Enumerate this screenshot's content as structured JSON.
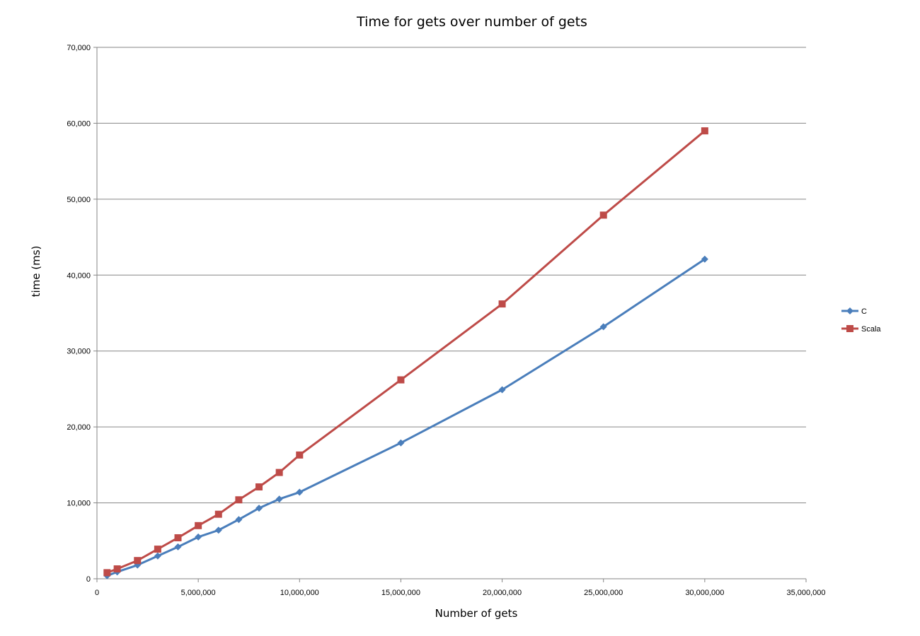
{
  "chart_data": {
    "type": "line",
    "title": "Time for gets over number of gets",
    "xlabel": "Number of gets",
    "ylabel": "time (ms)",
    "xlim": [
      0,
      35000000
    ],
    "ylim": [
      0,
      70000
    ],
    "x_ticks": [
      0,
      5000000,
      10000000,
      15000000,
      20000000,
      25000000,
      30000000,
      35000000
    ],
    "x_tick_labels": [
      "0",
      "5,000,000",
      "10,000,000",
      "15,000,000",
      "20,000,000",
      "25,000,000",
      "30,000,000",
      "35,000,000"
    ],
    "y_ticks": [
      0,
      10000,
      20000,
      30000,
      40000,
      50000,
      60000,
      70000
    ],
    "y_tick_labels": [
      "0",
      "10,000",
      "20,000",
      "30,000",
      "40,000",
      "50,000",
      "60,000",
      "70,000"
    ],
    "grid": "horizontal",
    "legend_position": "right",
    "x": [
      500000,
      1000000,
      2000000,
      3000000,
      4000000,
      5000000,
      6000000,
      7000000,
      8000000,
      9000000,
      10000000,
      15000000,
      20000000,
      25000000,
      30000000
    ],
    "series": [
      {
        "name": "C",
        "color": "#4a7ebb",
        "marker": "diamond",
        "values": [
          400,
          900,
          1800,
          3000,
          4200,
          5500,
          6400,
          7800,
          9300,
          10500,
          11400,
          17900,
          24900,
          33200,
          42100
        ]
      },
      {
        "name": "Scala",
        "color": "#be4b48",
        "marker": "square",
        "values": [
          800,
          1300,
          2400,
          3900,
          5400,
          7000,
          8500,
          10400,
          12100,
          14000,
          16300,
          26200,
          36200,
          47900,
          59000
        ]
      }
    ]
  }
}
